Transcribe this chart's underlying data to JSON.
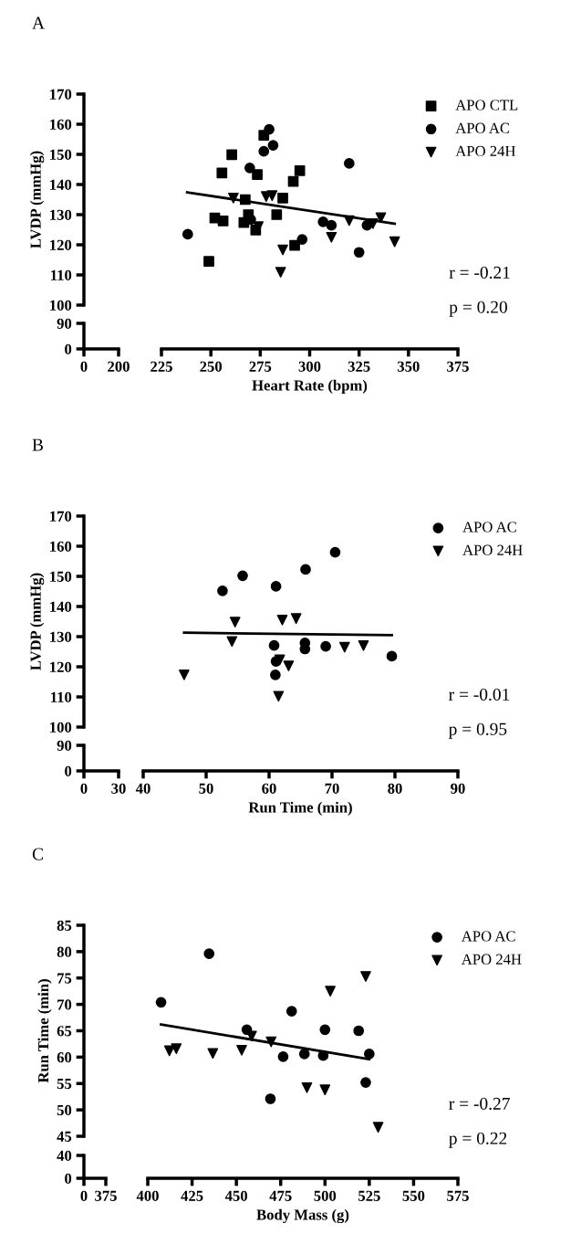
{
  "chart_data": [
    {
      "type": "scatter",
      "title": "A",
      "xlabel": "Heart Rate (bpm)",
      "ylabel": "LVDP (mmHg)",
      "legend": "top right",
      "xlim": [
        225,
        375
      ],
      "xticks": [
        225,
        250,
        275,
        300,
        325,
        350,
        375
      ],
      "ylim": [
        100,
        170
      ],
      "yticks": [
        100,
        110,
        120,
        130,
        140,
        150,
        160,
        170
      ],
      "annotations": [
        "r = -0.21",
        "p = 0.20"
      ],
      "series": [
        {
          "name": "APO CTL",
          "color": "#000000",
          "marker": "square",
          "x": [
            249,
            260.6,
            255.6,
            252,
            256.2,
            267.4,
            266.7,
            269,
            273.5,
            276.8,
            272.7,
            283.3,
            286.4,
            291.7,
            295,
            292.4
          ],
          "values": [
            114.5,
            149.9,
            143.8,
            128.9,
            127.9,
            135,
            127.4,
            130,
            143.3,
            156.3,
            124.9,
            130,
            135.5,
            141,
            144.6,
            119.8
          ]
        },
        {
          "name": "APO AC",
          "color": "#000000",
          "marker": "circle",
          "x": [
            238.3,
            269.7,
            270.2,
            276.8,
            279.5,
            281.5,
            296.2,
            306.8,
            311,
            320,
            325,
            329
          ],
          "values": [
            123.5,
            145.5,
            128.4,
            151,
            158.3,
            153,
            121.8,
            127.6,
            126.5,
            147,
            117.5,
            126.5
          ]
        },
        {
          "name": "APO 24H",
          "color": "#000000",
          "marker": "triangle",
          "x": [
            261.4,
            274,
            278,
            281,
            286.4,
            285.3,
            311,
            320,
            332,
            336,
            343
          ],
          "values": [
            135.5,
            126,
            136,
            136.3,
            118.3,
            110.9,
            122.5,
            128,
            127,
            129,
            121
          ]
        },
        {
          "type": "line",
          "color": "#000000",
          "x": [
            238,
            343
          ],
          "values": [
            137.4,
            127
          ]
        }
      ]
    },
    {
      "type": "scatter",
      "xlim": [
        0,
        200
      ],
      "xticks": [
        0,
        200
      ],
      "ylim": [
        0,
        90
      ],
      "yticks": [
        0,
        90
      ]
    },
    {
      "type": "scatter",
      "title": "B",
      "xlabel": "Run Time (min)",
      "ylabel": "LVDP (mmHg)",
      "legend": "top right",
      "xlim": [
        40,
        90
      ],
      "xticks": [
        40,
        50,
        60,
        70,
        80,
        90
      ],
      "ylim": [
        100,
        170
      ],
      "yticks": [
        100,
        110,
        120,
        130,
        140,
        150,
        160,
        170
      ],
      "annotations": [
        "r = -0.01",
        "p = 0.95"
      ],
      "series": [
        {
          "name": "APO AC",
          "color": "#000000",
          "marker": "circle",
          "x": [
            52.6,
            55.8,
            61.1,
            65.8,
            60.8,
            61.0,
            61.1,
            65.7,
            65.7,
            70.5,
            69,
            79.5
          ],
          "values": [
            145.2,
            150.2,
            146.7,
            152.3,
            127.1,
            117.3,
            121.8,
            127.9,
            125.9,
            158,
            126.8,
            123.5
          ]
        },
        {
          "name": "APO 24H",
          "color": "#000000",
          "marker": "triangle",
          "x": [
            46.5,
            54.6,
            54.1,
            62.1,
            64.3,
            61.5,
            61.7,
            63.1,
            72,
            75
          ],
          "values": [
            117.3,
            134.8,
            128.4,
            135.5,
            136,
            110.2,
            122.3,
            120.3,
            126.5,
            127
          ]
        },
        {
          "type": "line",
          "color": "#000000",
          "x": [
            46.5,
            79.5
          ],
          "values": [
            131.3,
            130.5
          ]
        }
      ]
    },
    {
      "type": "scatter",
      "xlim": [
        0,
        30
      ],
      "xticks": [
        0,
        30
      ],
      "ylim": [
        0,
        90
      ],
      "yticks": [
        0,
        90
      ]
    },
    {
      "type": "scatter",
      "title": "C",
      "xlabel": "Body Mass (g)",
      "ylabel": "Run Time (min)",
      "legend": "top right",
      "xlim": [
        400,
        575
      ],
      "xticks": [
        400,
        425,
        450,
        475,
        500,
        525,
        550,
        575
      ],
      "ylim": [
        45,
        85
      ],
      "yticks": [
        45,
        50,
        55,
        60,
        65,
        70,
        75,
        80,
        85
      ],
      "annotations": [
        "r = -0.27",
        "p = 0.22"
      ],
      "series": [
        {
          "name": "APO AC",
          "color": "#000000",
          "marker": "circle",
          "x": [
            407.5,
            434.6,
            455.9,
            481.2,
            476.4,
            488.4,
            469.2,
            500,
            499,
            519,
            523,
            525
          ],
          "values": [
            70.4,
            79.6,
            65.2,
            68.7,
            60.1,
            60.6,
            52.1,
            65.2,
            60.3,
            65,
            55.2,
            60.6
          ]
        },
        {
          "name": "APO 24H",
          "color": "#000000",
          "marker": "triangle",
          "x": [
            412.2,
            416.1,
            436.7,
            453,
            458.6,
            469.6,
            489.8,
            503,
            500,
            523,
            530
          ],
          "values": [
            61.2,
            61.6,
            60.7,
            61.3,
            64,
            62.9,
            54.2,
            72.5,
            53.8,
            75.3,
            46.7
          ]
        },
        {
          "type": "line",
          "color": "#000000",
          "x": [
            407.5,
            525
          ],
          "values": [
            66.2,
            59.6
          ]
        }
      ]
    },
    {
      "type": "scatter",
      "xlim": [
        0,
        375
      ],
      "xticks": [
        0,
        375
      ],
      "ylim": [
        0,
        40
      ],
      "yticks": [
        0,
        40
      ]
    }
  ]
}
